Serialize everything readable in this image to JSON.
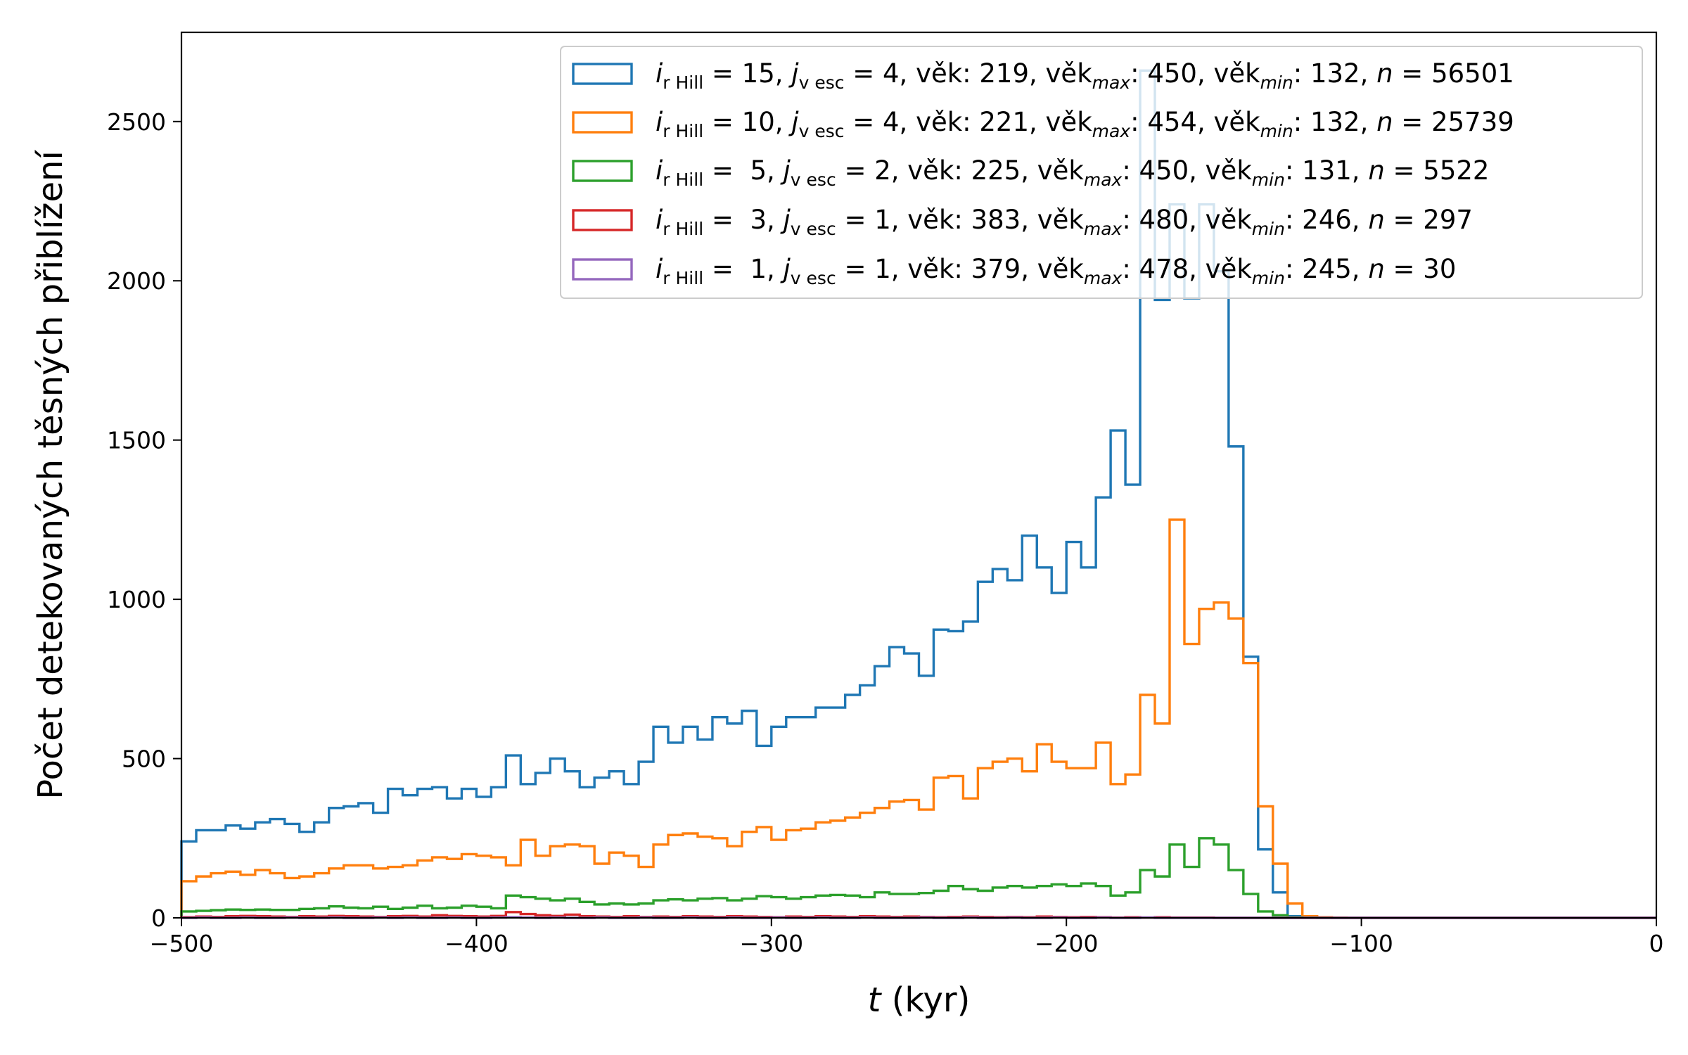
{
  "chart_data": {
    "type": "histogram-step",
    "xlabel_var": "t",
    "xlabel_unit": " (kyr)",
    "ylabel": "Počet detekovaných těsných přiblížení",
    "xlim": [
      -500,
      0
    ],
    "ylim": [
      0,
      2780
    ],
    "x_ticks": [
      -500,
      -400,
      -300,
      -200,
      -100,
      0
    ],
    "x_tick_labels": [
      "−500",
      "−400",
      "−300",
      "−200",
      "−100",
      "0"
    ],
    "y_ticks": [
      0,
      500,
      1000,
      1500,
      2000,
      2500
    ],
    "y_tick_labels": [
      "0",
      "500",
      "1000",
      "1500",
      "2000",
      "2500"
    ],
    "grid": false,
    "legend_position": "top-right",
    "bin_start": -500,
    "bin_width": 5,
    "series": [
      {
        "color": "#1f77b4",
        "legend": {
          "i": "15",
          "j": "4",
          "vek": "219",
          "vek_max": "450",
          "vek_min": "132",
          "n": "56501"
        },
        "values": [
          240,
          275,
          275,
          290,
          280,
          300,
          310,
          295,
          270,
          300,
          345,
          350,
          360,
          330,
          405,
          385,
          405,
          410,
          375,
          405,
          380,
          410,
          510,
          420,
          455,
          500,
          460,
          410,
          440,
          460,
          420,
          490,
          600,
          550,
          600,
          560,
          630,
          610,
          650,
          540,
          600,
          630,
          630,
          660,
          660,
          700,
          730,
          790,
          850,
          830,
          760,
          905,
          900,
          930,
          1055,
          1095,
          1060,
          1200,
          1100,
          1020,
          1180,
          1100,
          1320,
          1530,
          1360,
          2660,
          1940,
          2240,
          1945,
          2240,
          2030,
          1480,
          820,
          215,
          80,
          5,
          2,
          1,
          0,
          0,
          0,
          0,
          0,
          0,
          0,
          0,
          0,
          0,
          0,
          0,
          0,
          0,
          0,
          0,
          0,
          0,
          0,
          0,
          0,
          0
        ]
      },
      {
        "color": "#ff7f0e",
        "legend": {
          "i": "10",
          "j": "4",
          "vek": "221",
          "vek_max": "454",
          "vek_min": "132",
          "n": "25739"
        },
        "values": [
          115,
          130,
          140,
          145,
          135,
          150,
          140,
          125,
          130,
          140,
          155,
          165,
          165,
          155,
          160,
          165,
          180,
          190,
          185,
          200,
          195,
          190,
          165,
          245,
          195,
          225,
          230,
          225,
          170,
          205,
          195,
          160,
          230,
          260,
          265,
          255,
          250,
          225,
          270,
          285,
          245,
          275,
          280,
          300,
          305,
          315,
          330,
          345,
          365,
          370,
          340,
          440,
          445,
          375,
          470,
          490,
          500,
          460,
          545,
          490,
          470,
          470,
          550,
          420,
          450,
          700,
          610,
          1250,
          860,
          970,
          990,
          940,
          800,
          350,
          170,
          45,
          5,
          2,
          1,
          0,
          0,
          0,
          0,
          0,
          0,
          0,
          0,
          0,
          0,
          0,
          0,
          0,
          0,
          0,
          0,
          0,
          0,
          0,
          0,
          0
        ]
      },
      {
        "color": "#2ca02c",
        "legend": {
          "i": "5",
          "j": "2",
          "vek": "225",
          "vek_max": "450",
          "vek_min": "131",
          "n": "5522"
        },
        "values": [
          20,
          22,
          24,
          26,
          25,
          26,
          25,
          25,
          28,
          30,
          36,
          32,
          30,
          35,
          28,
          32,
          38,
          30,
          32,
          38,
          35,
          30,
          70,
          65,
          60,
          55,
          60,
          50,
          42,
          45,
          42,
          45,
          55,
          58,
          55,
          60,
          62,
          55,
          60,
          68,
          65,
          60,
          65,
          70,
          72,
          70,
          65,
          80,
          75,
          75,
          78,
          85,
          100,
          90,
          85,
          95,
          100,
          95,
          100,
          105,
          100,
          108,
          100,
          70,
          80,
          150,
          130,
          230,
          160,
          250,
          230,
          150,
          75,
          20,
          8,
          2,
          1,
          0,
          0,
          0,
          0,
          0,
          0,
          0,
          0,
          0,
          0,
          0,
          0,
          0,
          0,
          0,
          0,
          0,
          0,
          0,
          0,
          0,
          0,
          0
        ]
      },
      {
        "color": "#d62728",
        "legend": {
          "i": "3",
          "j": "1",
          "vek": "383",
          "vek_max": "480",
          "vek_min": "246",
          "n": "297"
        },
        "values": [
          2,
          4,
          3,
          5,
          6,
          5,
          4,
          3,
          5,
          4,
          6,
          5,
          4,
          3,
          5,
          6,
          4,
          8,
          6,
          5,
          4,
          6,
          18,
          12,
          8,
          6,
          10,
          5,
          4,
          3,
          5,
          3,
          4,
          3,
          5,
          4,
          3,
          5,
          4,
          3,
          2,
          4,
          3,
          5,
          4,
          3,
          5,
          4,
          3,
          4,
          3,
          2,
          3,
          4,
          3,
          2,
          3,
          2,
          4,
          3,
          2,
          3,
          2,
          1,
          2,
          1,
          2,
          1,
          1,
          1,
          0,
          0,
          0,
          0,
          0,
          0,
          0,
          0,
          0,
          0,
          0,
          0,
          0,
          0,
          0,
          0,
          0,
          0,
          0,
          0,
          0,
          0,
          0,
          0,
          0,
          0,
          0,
          0,
          0,
          0
        ]
      },
      {
        "color": "#9467bd",
        "legend": {
          "i": "1",
          "j": "1",
          "vek": "379",
          "vek_max": "478",
          "vek_min": "245",
          "n": "30"
        },
        "values": [
          0,
          1,
          0,
          0,
          1,
          0,
          0,
          1,
          0,
          0,
          1,
          0,
          0,
          1,
          0,
          1,
          0,
          0,
          1,
          0,
          0,
          1,
          2,
          1,
          0,
          1,
          0,
          0,
          1,
          0,
          0,
          1,
          0,
          0,
          1,
          0,
          0,
          1,
          0,
          0,
          1,
          0,
          0,
          1,
          0,
          0,
          1,
          0,
          0,
          0,
          1,
          0,
          0,
          1,
          0,
          0,
          1,
          0,
          0,
          1,
          0,
          0,
          1,
          0,
          0,
          1,
          0,
          0,
          0,
          0,
          0,
          0,
          0,
          0,
          0,
          0,
          0,
          0,
          0,
          0,
          0,
          0,
          0,
          0,
          0,
          0,
          0,
          0,
          0,
          0,
          0,
          0,
          0,
          0,
          0,
          0,
          0,
          0,
          0,
          0
        ]
      }
    ]
  }
}
